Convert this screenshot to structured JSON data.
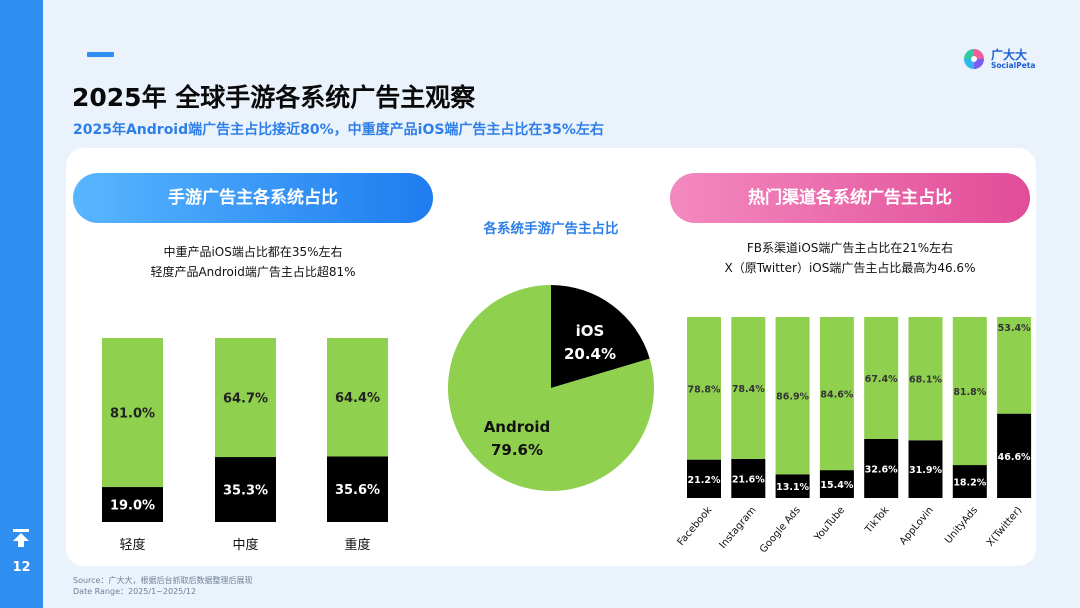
{
  "page": {
    "title": "2025年 全球手游各系统广告主观察",
    "subtitle": "2025年Android端广告主占比接近80%，中重度产品iOS端广告主占比在35%左右",
    "page_number": "12",
    "colors": {
      "accent": "#2f8ff0",
      "android": "#8fd14f",
      "ios": "#000000",
      "pink": "#e14c98"
    }
  },
  "logo": {
    "cn": "广大大",
    "en": "SocialPeta"
  },
  "left_panel": {
    "pill_title": "手游广告主各系统占比",
    "note_line1": "中重产品iOS端占比都在35%左右",
    "note_line2": "轻度产品Android端广告主占比超81%"
  },
  "middle_panel": {
    "title": "各系统手游广告主占比"
  },
  "right_panel": {
    "pill_title": "热门渠道各系统广告主占比",
    "note_line1": "FB系渠道iOS端广告主占比在21%左右",
    "note_line2": "X（原Twitter）iOS端广告主占比最高为46.6%"
  },
  "footer": {
    "source": "Source：广大大，根据后台抓取后数据整理后展现",
    "range": "Date Range：2025/1~2025/12"
  },
  "chart_data": [
    {
      "type": "bar",
      "stacked": true,
      "categories": [
        "轻度",
        "中度",
        "重度"
      ],
      "series": [
        {
          "values": [
            19.0,
            35.3,
            35.6
          ],
          "labels": [
            "19.0%",
            "35.3%",
            "35.6%"
          ],
          "color": "#000000"
        },
        {
          "values": [
            81.0,
            64.7,
            64.4
          ],
          "labels": [
            "81.0%",
            "64.7%",
            "64.4%"
          ],
          "color": "#8fd14f"
        }
      ],
      "ylim": [
        0,
        100
      ]
    },
    {
      "type": "pie",
      "categories": [
        "iOS",
        "Android"
      ],
      "values": [
        20.4,
        79.6
      ],
      "labels": [
        "20.4%",
        "79.6%"
      ],
      "colors": [
        "#000000",
        "#8fd14f"
      ]
    },
    {
      "type": "bar",
      "stacked": true,
      "categories": [
        "Facebook",
        "Instagram",
        "Google Ads",
        "YouTube",
        "TikTok",
        "AppLovin",
        "UnityAds",
        "X(Twitter)"
      ],
      "series": [
        {
          "values": [
            21.2,
            21.6,
            13.1,
            15.4,
            32.6,
            31.9,
            18.2,
            46.6
          ],
          "labels": [
            "21.2%",
            "21.6%",
            "13.1%",
            "15.4%",
            "32.6%",
            "31.9%",
            "18.2%",
            "46.6%"
          ],
          "color": "#000000"
        },
        {
          "values": [
            78.8,
            78.4,
            86.9,
            84.6,
            67.4,
            68.1,
            81.8,
            53.4
          ],
          "labels": [
            "78.8%",
            "78.4%",
            "86.9%",
            "84.6%",
            "67.4%",
            "68.1%",
            "81.8%",
            "53.4%"
          ],
          "color": "#8fd14f"
        }
      ],
      "ylim": [
        0,
        100
      ]
    }
  ]
}
